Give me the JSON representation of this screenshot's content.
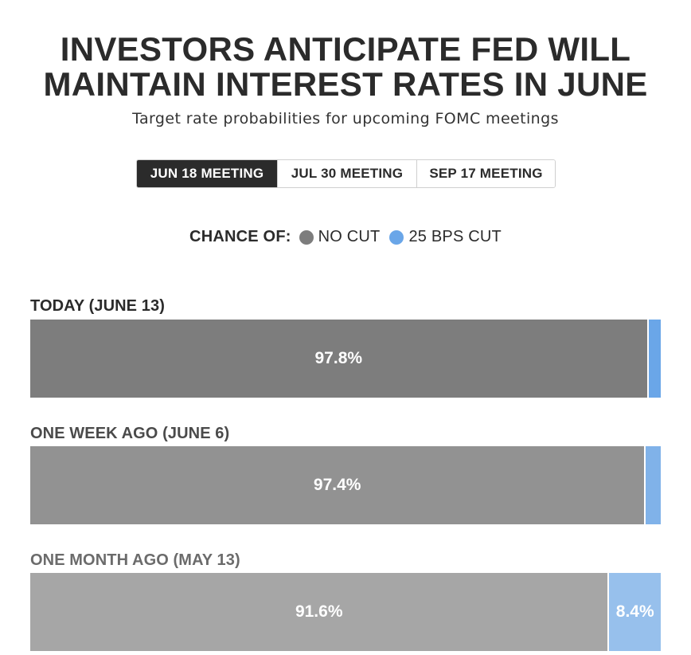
{
  "title_line1": "INVESTORS ANTICIPATE FED WILL",
  "title_line2": "MAINTAIN INTEREST RATES IN JUNE",
  "subtitle": "Target rate probabilities for upcoming FOMC meetings",
  "tabs": [
    {
      "label": "JUN 18 MEETING",
      "active": true
    },
    {
      "label": "JUL 30 MEETING",
      "active": false
    },
    {
      "label": "SEP 17 MEETING",
      "active": false
    }
  ],
  "legend": {
    "title": "CHANCE OF:",
    "items": [
      {
        "label": "NO CUT",
        "color": "#7d7d7d"
      },
      {
        "label": "25 BPS CUT",
        "color": "#6aa6e8"
      }
    ]
  },
  "chart_data": {
    "type": "bar",
    "orientation": "horizontal",
    "stacked": true,
    "categories": [
      "TODAY (JUNE 13)",
      "ONE WEEK AGO (JUNE 6)",
      "ONE MONTH AGO (MAY 13)"
    ],
    "series": [
      {
        "name": "NO CUT",
        "values": [
          97.8,
          97.4,
          91.6
        ],
        "labels": [
          "97.8%",
          "97.4%",
          "91.6%"
        ]
      },
      {
        "name": "25 BPS CUT",
        "values": [
          2.2,
          2.6,
          8.4
        ],
        "labels": [
          "",
          "",
          "8.4%"
        ]
      }
    ],
    "xlim": [
      0,
      100
    ]
  },
  "colors": {
    "no_cut_rows": [
      "#7d7d7d",
      "#929292",
      "#a6a6a6"
    ],
    "cut_rows": [
      "#6aa6e8",
      "#80b2e9",
      "#97c0ec"
    ],
    "label_rows": [
      "#2b2b2b",
      "#4a4a4a",
      "#6b6b6b"
    ]
  }
}
